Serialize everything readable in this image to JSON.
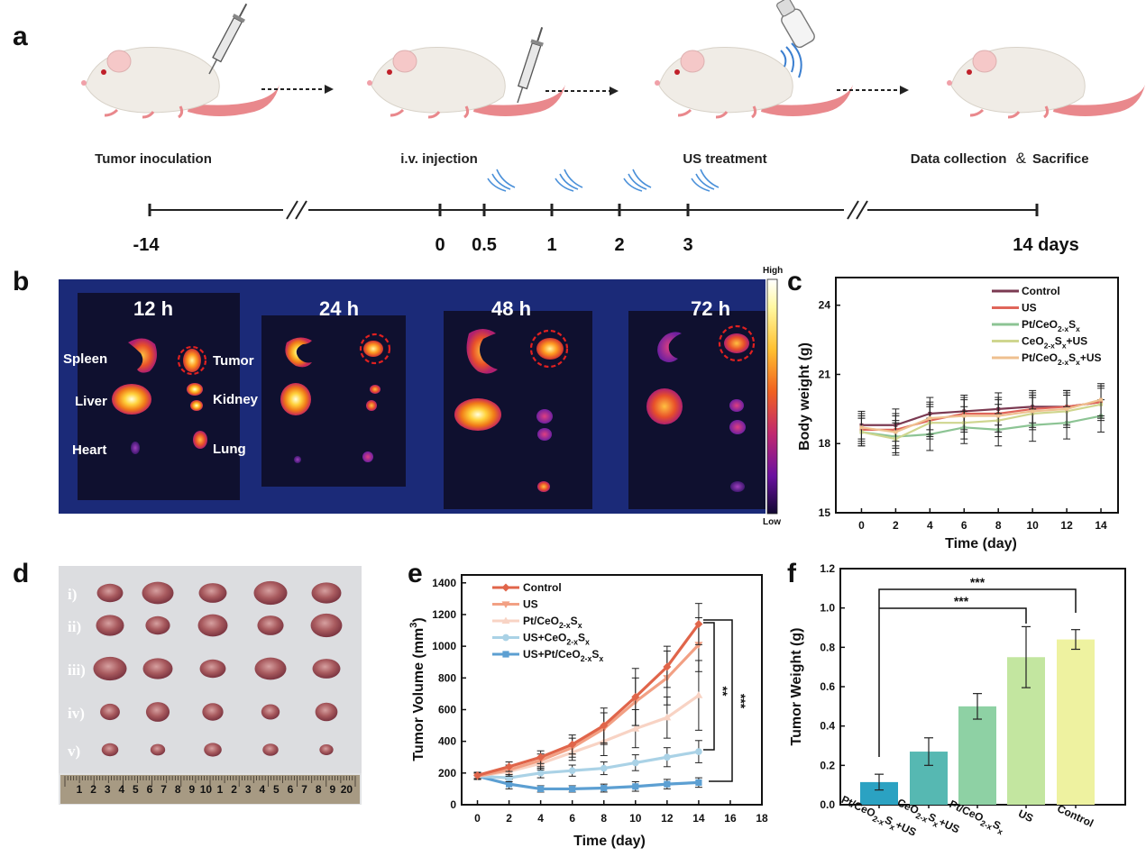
{
  "panel_labels": {
    "a": "a",
    "b": "b",
    "c": "c",
    "d": "d",
    "e": "e",
    "f": "f"
  },
  "panel_a": {
    "steps": [
      "Tumor inoculation",
      "i.v. injection",
      "US treatment",
      "Data collection",
      "Sacrifice"
    ],
    "ampersand": "&",
    "timeline_ticks": [
      "-14",
      "0",
      "0.5",
      "1",
      "2",
      "3",
      "14 days"
    ]
  },
  "panel_b": {
    "timepoints": [
      "12 h",
      "24 h",
      "48 h",
      "72 h"
    ],
    "organs": [
      "Spleen",
      "Liver",
      "Heart",
      "Tumor",
      "Kidney",
      "Lung"
    ],
    "colorbar": {
      "high": "High",
      "low": "Low"
    }
  },
  "panel_d": {
    "rows": [
      "i)",
      "ii)",
      "iii)",
      "iv)",
      "v)"
    ],
    "ruler_numbers": [
      "1",
      "2",
      "3",
      "4",
      "5",
      "6",
      "7",
      "8",
      "9",
      "10",
      "1",
      "2",
      "3",
      "4",
      "5",
      "6",
      "7",
      "8",
      "9",
      "20"
    ]
  },
  "colors": {
    "control_c": "#7b3a52",
    "us_c": "#e0655a",
    "pt_c": "#8cc494",
    "ceo_c": "#cfd68f",
    "ptus_c": "#efc08f",
    "control_e": "#e0654a",
    "us_e": "#f2a084",
    "pt_e": "#f8d3c4",
    "usceo_e": "#aad2e6",
    "uspt_e": "#5c9fd2"
  },
  "chart_data": [
    {
      "panel": "c",
      "type": "line",
      "xlabel": "Time (day)",
      "ylabel": "Body weight (g)",
      "x": [
        0,
        2,
        4,
        6,
        8,
        10,
        12,
        14
      ],
      "xticks": [
        "0",
        "2",
        "4",
        "6",
        "8",
        "10",
        "12",
        "14"
      ],
      "yticks": [
        "15",
        "18",
        "21",
        "24"
      ],
      "xlim": [
        -1.5,
        15
      ],
      "ylim": [
        15,
        25.2
      ],
      "legend_position": "top-right",
      "series": [
        {
          "name": "Control",
          "name_base": "Control",
          "name_sub": "",
          "name_mid": "",
          "name_sub2": "",
          "name_end": "",
          "color_key": "control_c",
          "values": [
            18.8,
            18.8,
            19.3,
            19.4,
            19.5,
            19.6,
            19.6,
            19.8
          ],
          "errors": [
            0.6,
            0.7,
            0.7,
            0.7,
            0.7,
            0.7,
            0.7,
            0.7
          ]
        },
        {
          "name": "US",
          "name_base": "US",
          "name_sub": "",
          "name_mid": "",
          "name_sub2": "",
          "name_end": "",
          "color_key": "us_c",
          "values": [
            18.6,
            18.6,
            19.0,
            19.3,
            19.3,
            19.5,
            19.6,
            19.8
          ],
          "errors": [
            0.6,
            0.7,
            0.7,
            0.7,
            0.7,
            0.7,
            0.7,
            0.7
          ]
        },
        {
          "name": "Pt/CeO2-xSx",
          "name_base": "Pt/CeO",
          "name_sub": "2-x",
          "name_mid": "S",
          "name_sub2": "x",
          "name_end": "",
          "color_key": "pt_c",
          "values": [
            18.5,
            18.3,
            18.4,
            18.7,
            18.6,
            18.8,
            18.9,
            19.2
          ],
          "errors": [
            0.6,
            0.7,
            0.7,
            0.7,
            0.7,
            0.7,
            0.7,
            0.7
          ]
        },
        {
          "name": "CeO2-xSx+US",
          "name_base": "CeO",
          "name_sub": "2-x",
          "name_mid": "S",
          "name_sub2": "x",
          "name_end": "+US",
          "color_key": "ceo_c",
          "values": [
            18.5,
            18.2,
            18.9,
            18.9,
            19.0,
            19.3,
            19.4,
            19.7
          ],
          "errors": [
            0.6,
            0.7,
            0.7,
            0.7,
            0.7,
            0.7,
            0.7,
            0.7
          ]
        },
        {
          "name": "Pt/CeO2-xSx+US",
          "name_base": "Pt/CeO",
          "name_sub": "2-x",
          "name_mid": "S",
          "name_sub2": "x",
          "name_end": "+US",
          "color_key": "ptus_c",
          "values": [
            18.7,
            18.5,
            19.1,
            19.2,
            19.2,
            19.4,
            19.5,
            19.9
          ],
          "errors": [
            0.6,
            0.7,
            0.7,
            0.7,
            0.7,
            0.7,
            0.7,
            0.7
          ]
        }
      ]
    },
    {
      "panel": "e",
      "type": "line",
      "xlabel": "Time (day)",
      "ylabel_base": "Tumor Volume (mm",
      "ylabel_sup": "3",
      "ylabel_end": ")",
      "x": [
        0,
        2,
        4,
        6,
        8,
        10,
        12,
        14
      ],
      "xticks": [
        "0",
        "2",
        "4",
        "6",
        "8",
        "10",
        "12",
        "14",
        "16",
        "18"
      ],
      "yticks": [
        "0",
        "200",
        "400",
        "600",
        "800",
        "1000",
        "1200",
        "1400"
      ],
      "xlim": [
        -1,
        18
      ],
      "ylim": [
        0,
        1450
      ],
      "legend_position": "top-left",
      "significance": [
        "**",
        "***"
      ],
      "series": [
        {
          "name": "Control",
          "name_base": "Control",
          "name_sub": "",
          "name_mid": "",
          "name_sub2": "",
          "name_end": "",
          "color_key": "control_e",
          "marker": "diamond",
          "values": [
            185,
            240,
            300,
            380,
            500,
            680,
            870,
            1140
          ],
          "errors": [
            20,
            30,
            40,
            60,
            110,
            180,
            130,
            130
          ]
        },
        {
          "name": "US",
          "name_base": "US",
          "name_sub": "",
          "name_mid": "",
          "name_sub2": "",
          "name_end": "",
          "color_key": "us_e",
          "marker": "triangle-down",
          "values": [
            180,
            220,
            280,
            360,
            480,
            650,
            800,
            1010
          ],
          "errors": [
            20,
            30,
            40,
            60,
            100,
            150,
            170,
            170
          ]
        },
        {
          "name": "Pt/CeO2-xSx",
          "name_base": "Pt/CeO",
          "name_sub": "2-x",
          "name_mid": "S",
          "name_sub2": "x",
          "name_end": "",
          "color_key": "pt_e",
          "marker": "triangle-up",
          "values": [
            180,
            210,
            260,
            330,
            400,
            480,
            550,
            690
          ],
          "errors": [
            20,
            30,
            40,
            50,
            90,
            120,
            130,
            220
          ]
        },
        {
          "name": "US+CeO2-xSx",
          "name_base": "US+CeO",
          "name_sub": "2-x",
          "name_mid": "S",
          "name_sub2": "x",
          "name_end": "",
          "color_key": "usceo_e",
          "marker": "circle",
          "values": [
            180,
            170,
            200,
            215,
            230,
            265,
            300,
            335
          ],
          "errors": [
            20,
            25,
            30,
            35,
            40,
            50,
            60,
            70
          ]
        },
        {
          "name": "US+Pt/CeO2-xSx",
          "name_base": "US+Pt/CeO",
          "name_sub": "2-x",
          "name_mid": "S",
          "name_sub2": "x",
          "name_end": "",
          "color_key": "uspt_e",
          "marker": "square",
          "values": [
            180,
            130,
            100,
            100,
            105,
            115,
            130,
            140
          ],
          "errors": [
            20,
            30,
            20,
            20,
            25,
            30,
            30,
            30
          ]
        }
      ]
    },
    {
      "panel": "f",
      "type": "bar",
      "ylabel": "Tumor Weight (g)",
      "yticks": [
        "0.0",
        "0.2",
        "0.4",
        "0.6",
        "0.8",
        "1.0",
        "1.2"
      ],
      "ylim": [
        0,
        1.2
      ],
      "significance": [
        "***",
        "***"
      ],
      "categories": [
        {
          "base": "Pt/CeO",
          "sub": "2-x",
          "mid": "S",
          "sub2": "x",
          "end": "+US",
          "color": "#2ba2c2",
          "value": 0.115,
          "error": 0.04
        },
        {
          "base": "CeO",
          "sub": "2-x",
          "mid": "S",
          "sub2": "x",
          "end": "+US",
          "color": "#56b8b2",
          "value": 0.27,
          "error": 0.07
        },
        {
          "base": "Pt/CeO",
          "sub": "2-x",
          "mid": "S",
          "sub2": "x",
          "end": "",
          "color": "#8ed1a4",
          "value": 0.5,
          "error": 0.065
        },
        {
          "base": "US",
          "sub": "",
          "mid": "",
          "sub2": "",
          "end": "",
          "color": "#c3e6a0",
          "value": 0.75,
          "error": 0.155
        },
        {
          "base": "Control",
          "sub": "",
          "mid": "",
          "sub2": "",
          "end": "",
          "color": "#eef2a0",
          "value": 0.84,
          "error": 0.05
        }
      ]
    }
  ]
}
